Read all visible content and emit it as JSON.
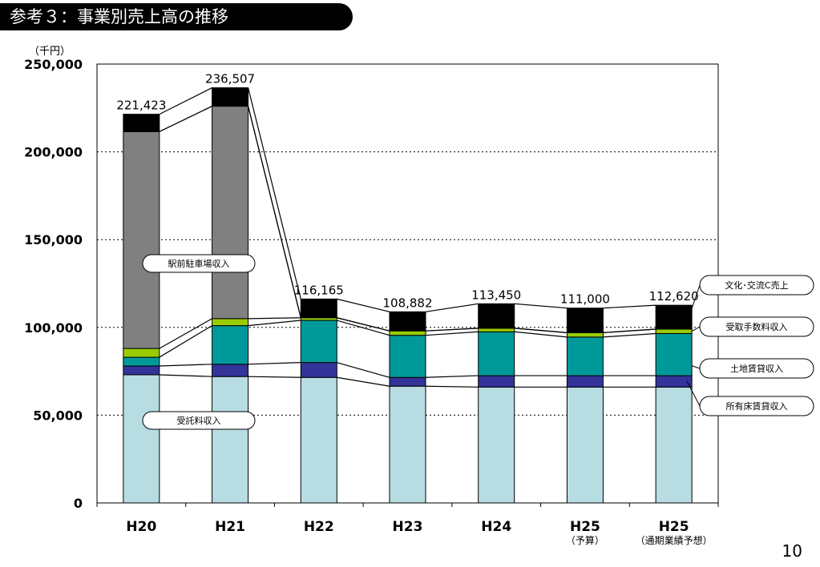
{
  "page": {
    "title": "参考３：事業別売上高の推移",
    "page_number": "10"
  },
  "chart_data": {
    "type": "bar",
    "stacked": true,
    "title": "",
    "unit_label": "（千円）",
    "ylim": [
      0,
      250000
    ],
    "yticks": [
      0,
      50000,
      100000,
      150000,
      200000,
      250000
    ],
    "ytick_labels": [
      "0",
      "50,000",
      "100,000",
      "150,000",
      "200,000",
      "250,000"
    ],
    "grid": "dotted horizontal",
    "categories": [
      "H20",
      "H21",
      "H22",
      "H23",
      "H24",
      "H25",
      "H25"
    ],
    "category_sublabels": [
      "",
      "",
      "",
      "",
      "",
      "（予算）",
      "（通期業績予想）"
    ],
    "totals": [
      221423,
      236507,
      116165,
      108882,
      113450,
      111000,
      112620
    ],
    "total_labels": [
      "221,423",
      "236,507",
      "116,165",
      "108,882",
      "113,450",
      "111,000",
      "112,620"
    ],
    "series": [
      {
        "name": "受託料収入",
        "color": "#b7dde2",
        "values": [
          73000,
          72000,
          71500,
          66500,
          66000,
          66000,
          66000
        ]
      },
      {
        "name": "所有床賃貸収入",
        "color": "#333399",
        "values": [
          5000,
          7000,
          8500,
          5000,
          6500,
          6500,
          6500
        ]
      },
      {
        "name": "土地賃貸収入",
        "color": "#009999",
        "values": [
          5000,
          22000,
          24000,
          24000,
          25000,
          22000,
          24000
        ]
      },
      {
        "name": "受取手数料収入",
        "color": "#99cc00",
        "values": [
          5000,
          4000,
          1500,
          2500,
          2000,
          2500,
          2500
        ]
      },
      {
        "name": "駅前駐車場収入",
        "color": "#808080",
        "values": [
          123500,
          121000,
          0,
          0,
          0,
          0,
          0
        ]
      },
      {
        "name": "文化・交流C売上",
        "color": "#000000",
        "values": [
          9923,
          10507,
          10665,
          10882,
          13950,
          14000,
          13620
        ]
      }
    ],
    "callouts": [
      {
        "text": "駅前駐車場収入"
      },
      {
        "text": "受託料収入"
      },
      {
        "text": "文化･交流C売上"
      },
      {
        "text": "受取手数料収入"
      },
      {
        "text": "土地賃貸収入"
      },
      {
        "text": "所有床賃貸収入"
      }
    ]
  }
}
